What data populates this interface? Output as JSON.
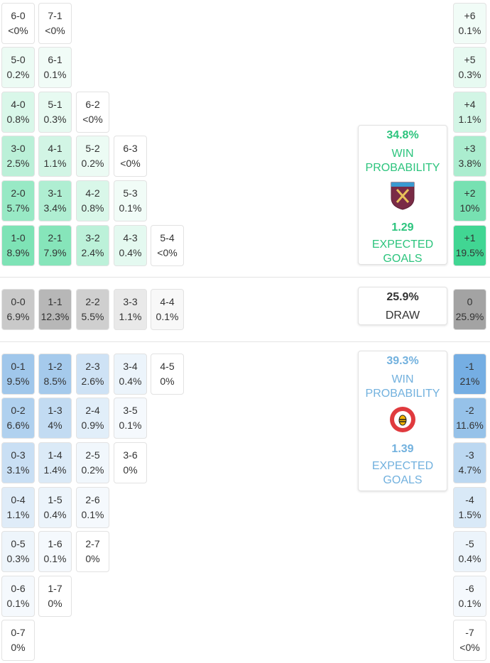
{
  "home": {
    "rows": [
      [
        {
          "score": "6-0",
          "prob": "<0%"
        },
        {
          "score": "7-1",
          "prob": "<0%"
        }
      ],
      [
        {
          "score": "5-0",
          "prob": "0.2%"
        },
        {
          "score": "6-1",
          "prob": "0.1%"
        }
      ],
      [
        {
          "score": "4-0",
          "prob": "0.8%"
        },
        {
          "score": "5-1",
          "prob": "0.3%"
        },
        {
          "score": "6-2",
          "prob": "<0%"
        }
      ],
      [
        {
          "score": "3-0",
          "prob": "2.5%"
        },
        {
          "score": "4-1",
          "prob": "1.1%"
        },
        {
          "score": "5-2",
          "prob": "0.2%"
        },
        {
          "score": "6-3",
          "prob": "<0%"
        }
      ],
      [
        {
          "score": "2-0",
          "prob": "5.7%"
        },
        {
          "score": "3-1",
          "prob": "3.4%"
        },
        {
          "score": "4-2",
          "prob": "0.8%"
        },
        {
          "score": "5-3",
          "prob": "0.1%"
        }
      ],
      [
        {
          "score": "1-0",
          "prob": "8.9%"
        },
        {
          "score": "2-1",
          "prob": "7.9%"
        },
        {
          "score": "3-2",
          "prob": "2.4%"
        },
        {
          "score": "4-3",
          "prob": "0.4%"
        },
        {
          "score": "5-4",
          "prob": "<0%"
        }
      ]
    ],
    "margins": [
      {
        "label": "+6",
        "prob": "0.1%"
      },
      {
        "label": "+5",
        "prob": "0.3%"
      },
      {
        "label": "+4",
        "prob": "1.1%"
      },
      {
        "label": "+3",
        "prob": "3.8%"
      },
      {
        "label": "+2",
        "prob": "10%"
      },
      {
        "label": "+1",
        "prob": "19.5%"
      }
    ],
    "card": {
      "probability": "34.8%",
      "label": "WIN PROBABILITY",
      "xg": "1.29",
      "xg_label": "EXPECTED GOALS"
    }
  },
  "draw": {
    "rows": [
      [
        {
          "score": "0-0",
          "prob": "6.9%"
        },
        {
          "score": "1-1",
          "prob": "12.3%"
        },
        {
          "score": "2-2",
          "prob": "5.5%"
        },
        {
          "score": "3-3",
          "prob": "1.1%"
        },
        {
          "score": "4-4",
          "prob": "0.1%"
        }
      ]
    ],
    "margins": [
      {
        "label": "0",
        "prob": "25.9%"
      }
    ],
    "card": {
      "probability": "25.9%",
      "label": "DRAW"
    }
  },
  "away": {
    "rows": [
      [
        {
          "score": "0-1",
          "prob": "9.5%"
        },
        {
          "score": "1-2",
          "prob": "8.5%"
        },
        {
          "score": "2-3",
          "prob": "2.6%"
        },
        {
          "score": "3-4",
          "prob": "0.4%"
        },
        {
          "score": "4-5",
          "prob": "0%"
        }
      ],
      [
        {
          "score": "0-2",
          "prob": "6.6%"
        },
        {
          "score": "1-3",
          "prob": "4%"
        },
        {
          "score": "2-4",
          "prob": "0.9%"
        },
        {
          "score": "3-5",
          "prob": "0.1%"
        }
      ],
      [
        {
          "score": "0-3",
          "prob": "3.1%"
        },
        {
          "score": "1-4",
          "prob": "1.4%"
        },
        {
          "score": "2-5",
          "prob": "0.2%"
        },
        {
          "score": "3-6",
          "prob": "0%"
        }
      ],
      [
        {
          "score": "0-4",
          "prob": "1.1%"
        },
        {
          "score": "1-5",
          "prob": "0.4%"
        },
        {
          "score": "2-6",
          "prob": "0.1%"
        }
      ],
      [
        {
          "score": "0-5",
          "prob": "0.3%"
        },
        {
          "score": "1-6",
          "prob": "0.1%"
        },
        {
          "score": "2-7",
          "prob": "0%"
        }
      ],
      [
        {
          "score": "0-6",
          "prob": "0.1%"
        },
        {
          "score": "1-7",
          "prob": "0%"
        }
      ],
      [
        {
          "score": "0-7",
          "prob": "0%"
        }
      ]
    ],
    "margins": [
      {
        "label": "-1",
        "prob": "21%"
      },
      {
        "label": "-2",
        "prob": "11.6%"
      },
      {
        "label": "-3",
        "prob": "4.7%"
      },
      {
        "label": "-4",
        "prob": "1.5%"
      },
      {
        "label": "-5",
        "prob": "0.4%"
      },
      {
        "label": "-6",
        "prob": "0.1%"
      },
      {
        "label": "-7",
        "prob": "<0%"
      }
    ],
    "card": {
      "probability": "39.3%",
      "label": "WIN PROBABILITY",
      "xg": "1.39",
      "xg_label": "EXPECTED GOALS"
    }
  }
}
